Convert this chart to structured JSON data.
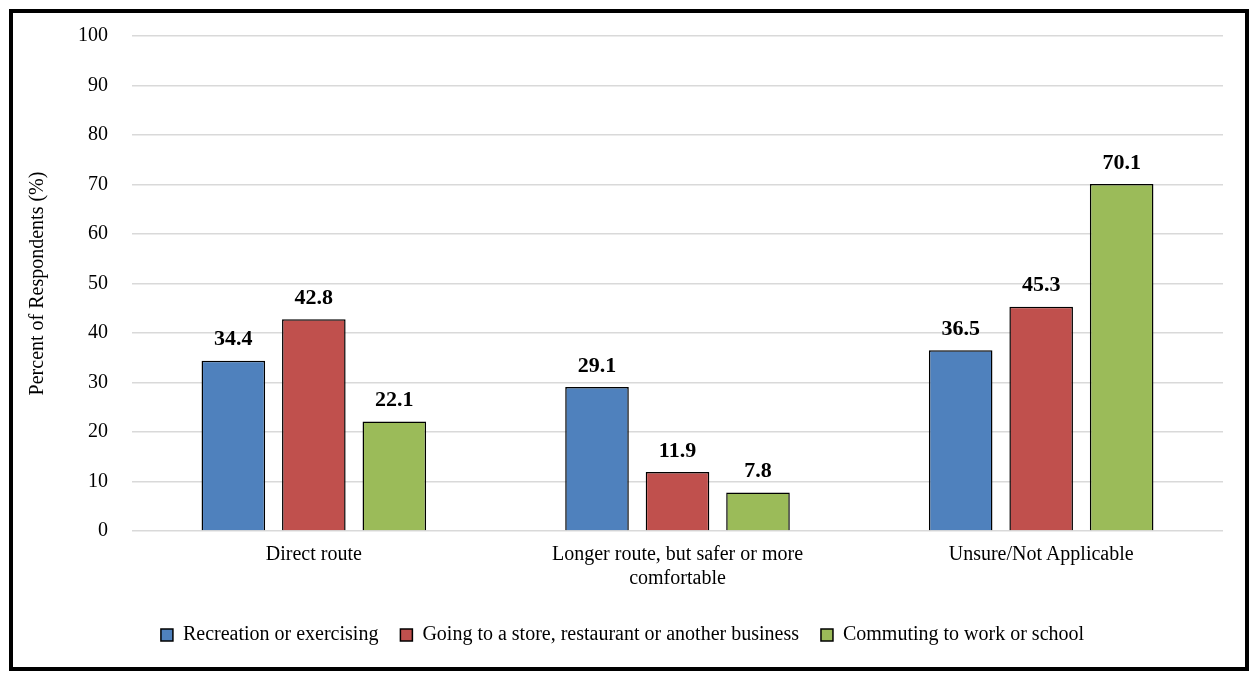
{
  "chart_data": {
    "type": "bar",
    "ylabel": "Percent of Respondents (%)",
    "categories": [
      "Direct route",
      "Longer route, but safer or more comfortable",
      "Unsure/Not Applicable"
    ],
    "series": [
      {
        "name": "Recreation or exercising",
        "color": "#4f81bd",
        "values": [
          34.4,
          29.1,
          36.5
        ]
      },
      {
        "name": "Going to a store, restaurant or another business",
        "color": "#c0504d",
        "values": [
          42.8,
          11.9,
          45.3
        ]
      },
      {
        "name": "Commuting to work or school",
        "color": "#9bbb59",
        "values": [
          22.1,
          7.8,
          70.1
        ]
      }
    ],
    "ylim": [
      0,
      100
    ],
    "yticks": [
      0,
      10,
      20,
      30,
      40,
      50,
      60,
      70,
      80,
      90,
      100
    ],
    "grid": "y",
    "legend": "bottom",
    "data_labels": true
  }
}
